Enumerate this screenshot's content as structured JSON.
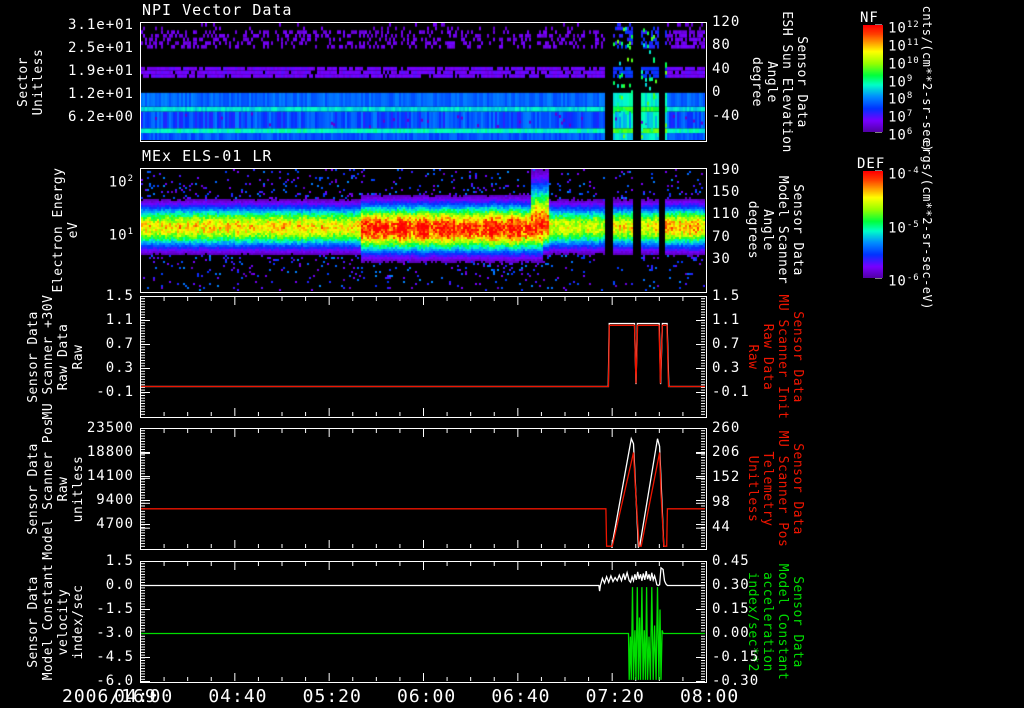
{
  "figure": {
    "date_label": "2006/169",
    "x_tick_labels": [
      "04:00",
      "04:40",
      "05:20",
      "06:00",
      "06:40",
      "07:20",
      "08:00"
    ],
    "t_range_hours": [
      4.0,
      8.0
    ],
    "background": "#000000",
    "accent_colors": {
      "white": "#ffffff",
      "red": "#ee1500",
      "green": "#00dd00"
    },
    "colormap_stops": [
      [
        0.0,
        "#0a0014"
      ],
      [
        0.1,
        "#5000a0"
      ],
      [
        0.2,
        "#7800ff"
      ],
      [
        0.3,
        "#0032ff"
      ],
      [
        0.4,
        "#008cff"
      ],
      [
        0.5,
        "#00ffc8"
      ],
      [
        0.58,
        "#00ff3c"
      ],
      [
        0.68,
        "#96ff00"
      ],
      [
        0.78,
        "#ffff00"
      ],
      [
        0.86,
        "#ff9600"
      ],
      [
        0.93,
        "#ff3c00"
      ],
      [
        1.0,
        "#ff0000"
      ]
    ]
  },
  "colorbars": [
    {
      "title": "NF",
      "units": "cnts/(cm**2-sr-sec)",
      "tick_labels": [
        "10^12",
        "10^11",
        "10^10",
        "10^9",
        "10^8",
        "10^7",
        "10^6"
      ],
      "decades": [
        12,
        6
      ]
    },
    {
      "title": "DEF",
      "units": "ergs/(cm**2-sr-sec-eV)",
      "tick_labels": [
        "10^-4",
        "10^-5",
        "10^-6"
      ],
      "decades": [
        -4,
        -6
      ]
    }
  ],
  "chart_data": [
    {
      "type": "heatmap",
      "title": "NPI Vector Data",
      "left_axis": {
        "label": "Sector\nUnitless",
        "range": [
          0,
          32
        ],
        "ticks": [
          {
            "v": 31,
            "label": "3.1e+01"
          },
          {
            "v": 24.8,
            "label": "2.5e+01"
          },
          {
            "v": 18.6,
            "label": "1.9e+01"
          },
          {
            "v": 12.4,
            "label": "1.2e+01"
          },
          {
            "v": 6.2,
            "label": "6.2e+00"
          }
        ]
      },
      "right_axis": {
        "label": "Sensor Data\nESH Sun Elevation\nAngle\ndegree",
        "color": "#ffffff",
        "range": [
          -80,
          120
        ],
        "ticks": [
          {
            "v": 120,
            "label": "120"
          },
          {
            "v": 80,
            "label": "80"
          },
          {
            "v": 40,
            "label": "40"
          },
          {
            "v": 0,
            "label": "0"
          },
          {
            "v": -40,
            "label": "-40"
          }
        ]
      },
      "bands": [
        {
          "s0": 0.0,
          "s1": 1.9,
          "v": 0.34
        },
        {
          "s0": 1.9,
          "s1": 3.2,
          "v": 0.5
        },
        {
          "s0": 3.2,
          "s1": 7.8,
          "v": 0.33,
          "jitter": 0.06
        },
        {
          "s0": 7.8,
          "s1": 9.1,
          "v": 0.47
        },
        {
          "s0": 9.1,
          "s1": 12.9,
          "v": 0.36
        },
        {
          "s0": 16.9,
          "s1": 19.9,
          "v": 0.17,
          "speckle": 0.88
        },
        {
          "s0": 24.5,
          "s1": 29.3,
          "v": 0.15,
          "speckle": 0.33
        },
        {
          "s0": 29.3,
          "s1": 32.0,
          "v": 0.14,
          "speckle": 0.08
        }
      ],
      "gaps_hours": [
        [
          7.287,
          7.335
        ],
        [
          7.487,
          7.532
        ],
        [
          7.664,
          7.716
        ]
      ],
      "event_hours": [
        7.335,
        7.73
      ],
      "overlay_series": {
        "name": "sun-elevation-angle",
        "color": "#ffffff",
        "axis": "right",
        "points": [
          [
            4.0,
            76
          ],
          [
            7.302,
            76
          ],
          [
            7.48,
            -70
          ],
          [
            7.502,
            74
          ],
          [
            7.668,
            -70
          ],
          [
            7.688,
            76
          ],
          [
            8.0,
            76
          ]
        ]
      }
    },
    {
      "type": "heatmap",
      "title": "MEx ELS-01 LR",
      "left_axis": {
        "label": "Electron Energy\neV",
        "scale": "log",
        "ticks": [
          {
            "v": 100,
            "label": "10^2"
          },
          {
            "v": 10,
            "label": "10^1"
          }
        ]
      },
      "right_axis": {
        "label": "Sensor Data\nModel Scanner\nAngle\ndegrees",
        "color": "#ffffff",
        "range": [
          -26,
          194
        ],
        "ticks": [
          {
            "v": 190,
            "label": "190"
          },
          {
            "v": 150,
            "label": "150"
          },
          {
            "v": 110,
            "label": "110"
          },
          {
            "v": 70,
            "label": "70"
          },
          {
            "v": 30,
            "label": "30"
          }
        ]
      },
      "spectrum": {
        "center_log_ev": 1.13,
        "sigma_decades": 0.27,
        "amp": 0.8,
        "red_interval": {
          "t0": 5.55,
          "t1": 6.85,
          "amp": 0.97,
          "center_log_ev": 1.1,
          "sigma_decades": 0.31
        },
        "plume": {
          "t0": 6.76,
          "t1": 6.88,
          "amp": 0.95,
          "sigma_up": 0.55
        },
        "post_interval": {
          "t0": 6.9,
          "t1": 7.287,
          "amp": 0.74
        },
        "event_amp": 0.78,
        "after_amp": 0.84
      },
      "gaps_hours": [
        [
          7.287,
          7.335
        ],
        [
          7.487,
          7.532
        ],
        [
          7.664,
          7.716
        ]
      ],
      "overlay_series": {
        "name": "model-scanner-angle",
        "color": "#ffffff",
        "axis": "right",
        "points": [
          [
            4.0,
            -6
          ],
          [
            7.318,
            -6
          ],
          [
            7.325,
            -16
          ],
          [
            7.497,
            162
          ],
          [
            7.503,
            -18
          ],
          [
            7.67,
            162
          ],
          [
            7.676,
            -18
          ],
          [
            7.73,
            -8
          ],
          [
            8.0,
            -8
          ]
        ]
      }
    },
    {
      "type": "line",
      "left_axis": {
        "label": "Sensor Data\nMU Scanner +30V\nRaw Data\nRaw",
        "color": "#ffffff",
        "range": [
          -0.5,
          1.5
        ],
        "ticks": [
          {
            "v": 1.5,
            "label": "1.5"
          },
          {
            "v": 1.1,
            "label": "1.1"
          },
          {
            "v": 0.7,
            "label": "0.7"
          },
          {
            "v": 0.3,
            "label": "0.3"
          },
          {
            "v": -0.1,
            "label": "-0.1"
          }
        ]
      },
      "right_axis": {
        "label": "Sensor Data\nMU Scanner Init\nRaw Data\nRaw",
        "color": "#ee1500",
        "range": [
          -0.5,
          1.5
        ],
        "ticks": [
          {
            "v": 1.5,
            "label": "1.5"
          },
          {
            "v": 1.1,
            "label": "1.1"
          },
          {
            "v": 0.7,
            "label": "0.7"
          },
          {
            "v": 0.3,
            "label": "0.3"
          },
          {
            "v": -0.1,
            "label": "-0.1"
          }
        ]
      },
      "series": [
        {
          "name": "mu-scanner-30v-raw",
          "color": "#ffffff",
          "axis": "left",
          "points": [
            [
              4.0,
              0.0
            ],
            [
              7.312,
              0.0
            ],
            [
              7.318,
              1.05
            ],
            [
              7.497,
              1.05
            ],
            [
              7.508,
              0.04
            ],
            [
              7.518,
              1.05
            ],
            [
              7.672,
              1.05
            ],
            [
              7.682,
              0.04
            ],
            [
              7.695,
              1.05
            ],
            [
              7.728,
              1.05
            ],
            [
              7.74,
              0.0
            ],
            [
              8.0,
              0.0
            ]
          ]
        },
        {
          "name": "mu-scanner-init-raw",
          "color": "#ee1500",
          "axis": "right",
          "points": [
            [
              4.0,
              0.0
            ],
            [
              7.313,
              0.0
            ],
            [
              7.319,
              1.02
            ],
            [
              7.497,
              1.02
            ],
            [
              7.508,
              0.05
            ],
            [
              7.519,
              1.02
            ],
            [
              7.671,
              1.02
            ],
            [
              7.681,
              0.05
            ],
            [
              7.694,
              1.02
            ],
            [
              7.727,
              1.02
            ],
            [
              7.738,
              0.0
            ],
            [
              8.0,
              0.0
            ]
          ]
        }
      ]
    },
    {
      "type": "line",
      "left_axis": {
        "label": "Sensor Data\nModel Scanner Pos\nRaw\nunitless",
        "color": "#ffffff",
        "range": [
          0,
          23500
        ],
        "ticks": [
          {
            "v": 23500,
            "label": "23500"
          },
          {
            "v": 18800,
            "label": "18800"
          },
          {
            "v": 14100,
            "label": "14100"
          },
          {
            "v": 9400,
            "label": "9400"
          },
          {
            "v": 4700,
            "label": "4700"
          }
        ]
      },
      "right_axis": {
        "label": "Sensor Data\nMU Scanner Pos\nTelemetry\nUnitless",
        "color": "#ee1500",
        "range": [
          0,
          260
        ],
        "ticks": [
          {
            "v": 260,
            "label": "260"
          },
          {
            "v": 206,
            "label": "206"
          },
          {
            "v": 152,
            "label": "152"
          },
          {
            "v": 98,
            "label": "98"
          },
          {
            "v": 44,
            "label": "44"
          }
        ]
      },
      "series": [
        {
          "name": "model-scanner-pos-raw",
          "color": "#ffffff",
          "axis": "left",
          "points": [
            [
              7.335,
              200
            ],
            [
              7.475,
              21500
            ],
            [
              7.49,
              20500
            ],
            [
              7.525,
              300
            ],
            [
              7.535,
              600
            ],
            [
              7.66,
              21500
            ],
            [
              7.675,
              20000
            ],
            [
              7.705,
              300
            ]
          ]
        },
        {
          "name": "mu-scanner-pos-telemetry",
          "color": "#ee1500",
          "axis": "right",
          "points": [
            [
              4.0,
              86
            ],
            [
              7.295,
              86
            ],
            [
              7.3,
              5
            ],
            [
              7.34,
              5
            ],
            [
              7.49,
              208
            ],
            [
              7.5,
              150
            ],
            [
              7.53,
              5
            ],
            [
              7.545,
              5
            ],
            [
              7.675,
              208
            ],
            [
              7.685,
              120
            ],
            [
              7.705,
              5
            ],
            [
              7.725,
              5
            ],
            [
              7.73,
              86
            ],
            [
              8.0,
              86
            ]
          ]
        }
      ]
    },
    {
      "type": "line",
      "left_axis": {
        "label": "Sensor Data\nModel Constant\nvelocity\nindex/sec",
        "color": "#ffffff",
        "range": [
          -6.0,
          1.5
        ],
        "ticks": [
          {
            "v": 1.5,
            "label": "1.5"
          },
          {
            "v": 0.0,
            "label": "0.0"
          },
          {
            "v": -1.5,
            "label": "-1.5"
          },
          {
            "v": -3.0,
            "label": "-3.0"
          },
          {
            "v": -4.5,
            "label": "-4.5"
          },
          {
            "v": -6.0,
            "label": "-6.0"
          }
        ]
      },
      "right_axis": {
        "label": "Sensor Data\nModel Constant\nacceleration\nindex/sec**2",
        "color": "#00dd00",
        "range": [
          -0.3,
          0.45
        ],
        "ticks": [
          {
            "v": 0.45,
            "label": "0.45"
          },
          {
            "v": 0.3,
            "label": "0.30"
          },
          {
            "v": 0.15,
            "label": "0.15"
          },
          {
            "v": 0.0,
            "label": "0.00"
          },
          {
            "v": -0.15,
            "label": "-0.15"
          },
          {
            "v": -0.3,
            "label": "-0.30"
          }
        ]
      },
      "series": [
        {
          "name": "model-constant-velocity",
          "color": "#ffffff",
          "axis": "left",
          "points": [
            [
              4.0,
              0
            ],
            [
              7.245,
              0
            ],
            [
              7.25,
              -0.35
            ],
            [
              7.256,
              0
            ],
            [
              7.27,
              0.45
            ],
            [
              7.285,
              0.15
            ],
            [
              7.3,
              0.55
            ],
            [
              7.315,
              0.2
            ],
            [
              7.33,
              0.6
            ],
            [
              7.345,
              0.25
            ],
            [
              7.36,
              0.5
            ],
            [
              7.375,
              0.3
            ],
            [
              7.39,
              0.65
            ],
            [
              7.405,
              0.3
            ],
            [
              7.42,
              0.75
            ],
            [
              7.43,
              0.35
            ],
            [
              7.445,
              0.8
            ],
            [
              7.46,
              0.3
            ],
            [
              7.47,
              0.2
            ],
            [
              7.48,
              0.55
            ],
            [
              7.49,
              0.3
            ],
            [
              7.5,
              0.7
            ],
            [
              7.51,
              0.35
            ],
            [
              7.52,
              0.85
            ],
            [
              7.53,
              0.4
            ],
            [
              7.54,
              0.7
            ],
            [
              7.55,
              0.3
            ],
            [
              7.56,
              0.75
            ],
            [
              7.57,
              0.35
            ],
            [
              7.58,
              0.9
            ],
            [
              7.59,
              0.4
            ],
            [
              7.6,
              0.7
            ],
            [
              7.61,
              0.3
            ],
            [
              7.62,
              0.8
            ],
            [
              7.63,
              0.35
            ],
            [
              7.64,
              0.6
            ],
            [
              7.65,
              0.25
            ],
            [
              7.655,
              0.05
            ],
            [
              7.665,
              0.0
            ],
            [
              7.675,
              0.05
            ],
            [
              7.685,
              1.1
            ],
            [
              7.7,
              1.0
            ],
            [
              7.71,
              0.3
            ],
            [
              7.72,
              0.1
            ],
            [
              7.73,
              0.0
            ],
            [
              8.0,
              0.0
            ]
          ]
        },
        {
          "name": "model-constant-acceleration",
          "color": "#00dd00",
          "axis": "right",
          "points": [
            [
              4.0,
              0.0
            ],
            [
              7.455,
              0.0
            ],
            [
              7.46,
              -0.29
            ],
            [
              7.468,
              -0.02
            ],
            [
              7.475,
              -0.29
            ],
            [
              7.483,
              0.29
            ],
            [
              7.49,
              -0.29
            ],
            [
              7.5,
              0.02
            ],
            [
              7.508,
              -0.29
            ],
            [
              7.517,
              0.29
            ],
            [
              7.525,
              -0.29
            ],
            [
              7.533,
              0.1
            ],
            [
              7.54,
              -0.29
            ],
            [
              7.55,
              0.29
            ],
            [
              7.558,
              -0.29
            ],
            [
              7.567,
              0.02
            ],
            [
              7.575,
              -0.29
            ],
            [
              7.583,
              0.29
            ],
            [
              7.59,
              -0.29
            ],
            [
              7.6,
              -0.02
            ],
            [
              7.61,
              -0.29
            ],
            [
              7.62,
              0.29
            ],
            [
              7.63,
              -0.29
            ],
            [
              7.64,
              0.05
            ],
            [
              7.65,
              -0.29
            ],
            [
              7.66,
              0.29
            ],
            [
              7.67,
              -0.29
            ],
            [
              7.678,
              0.15
            ],
            [
              7.685,
              -0.29
            ],
            [
              7.693,
              0.02
            ],
            [
              7.7,
              0.0
            ],
            [
              8.0,
              0.0
            ]
          ]
        }
      ]
    }
  ]
}
